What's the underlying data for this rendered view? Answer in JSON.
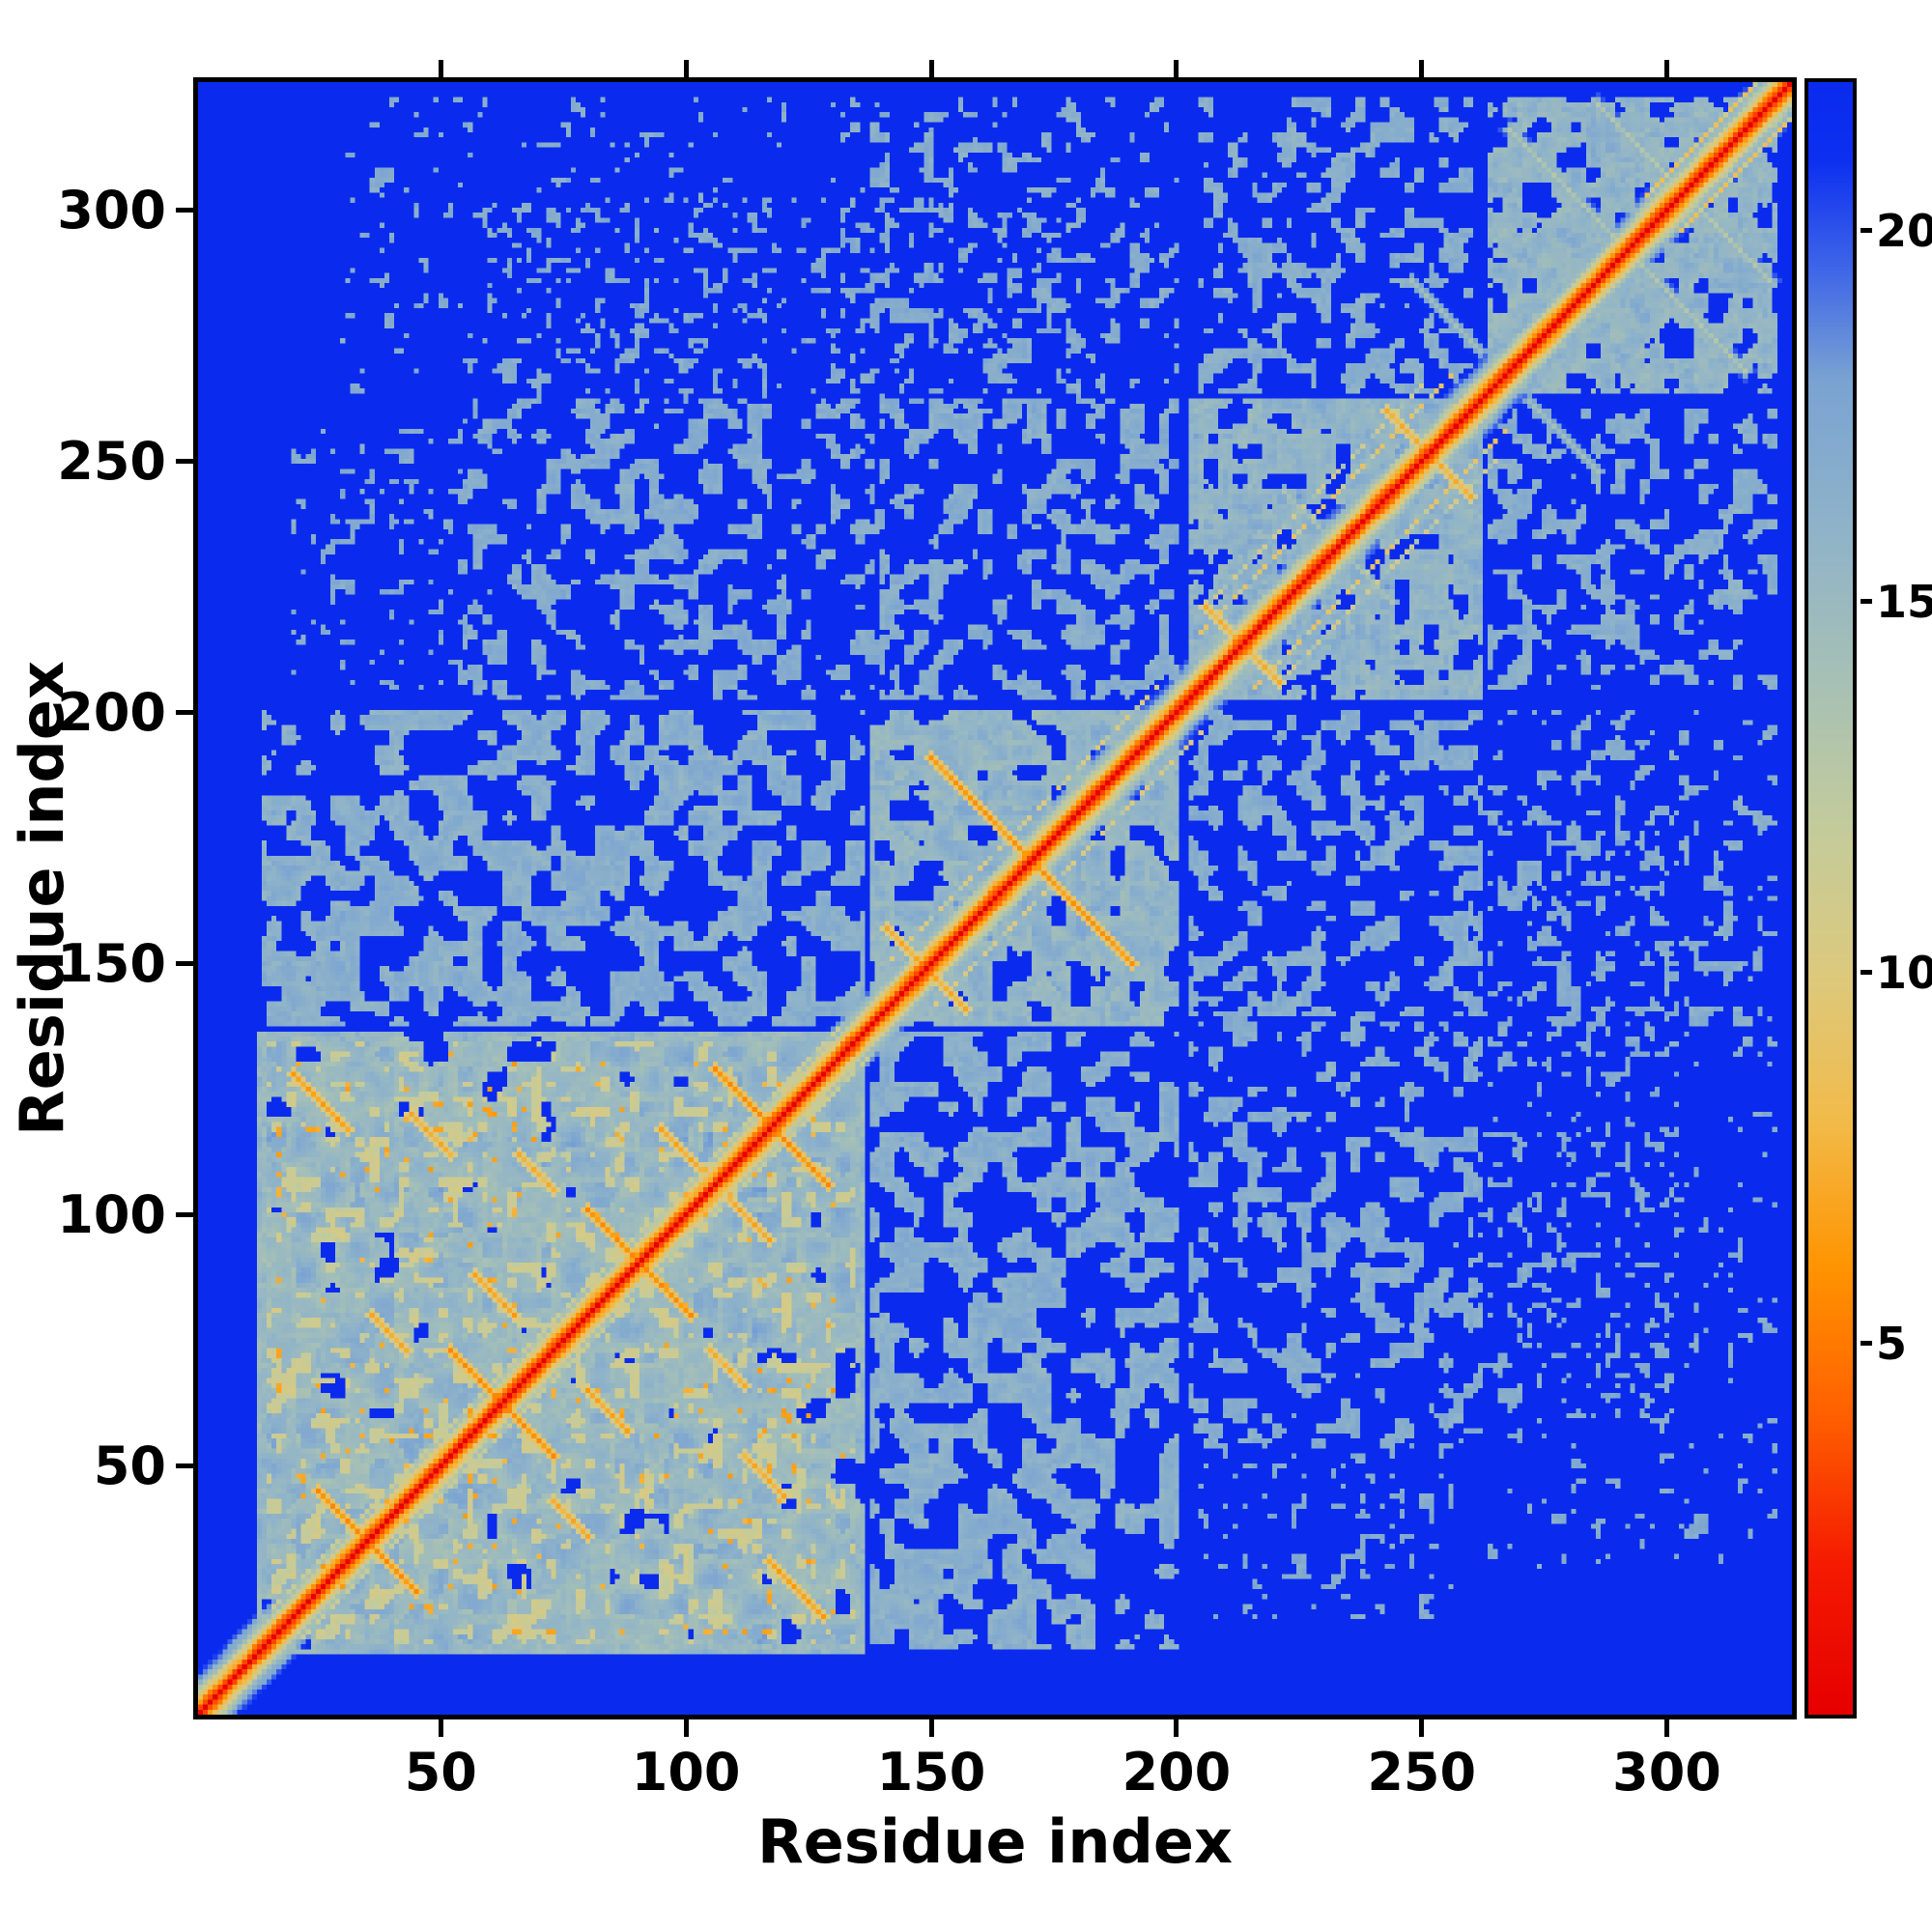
{
  "figure": {
    "xlabel": "Residue index",
    "ylabel": "Residue index",
    "x_ticks": [
      50,
      100,
      150,
      200,
      250,
      300
    ],
    "y_ticks": [
      50,
      100,
      150,
      200,
      250,
      300
    ],
    "colorbar_ticks": [
      5,
      10,
      15,
      20
    ],
    "background_color": "#ffffff",
    "frame_color": "#000000"
  },
  "chart_data": {
    "type": "heatmap",
    "title": "",
    "xlabel": "Residue index",
    "ylabel": "Residue index",
    "n_residues": 325,
    "xlim": [
      1,
      325
    ],
    "ylim": [
      1,
      325
    ],
    "value_range": [
      0,
      22
    ],
    "colorbar_ticks": [
      5,
      10,
      15,
      20
    ],
    "legend": "distance colorbar, low=red high=blue, background capped at max (blue)",
    "colormap_stops": [
      [
        0,
        "#e60000"
      ],
      [
        2,
        "#f51a00"
      ],
      [
        4,
        "#ff5f00"
      ],
      [
        6,
        "#ff9400"
      ],
      [
        8,
        "#f2bb4a"
      ],
      [
        10,
        "#dcc97e"
      ],
      [
        12,
        "#c3cb9c"
      ],
      [
        14,
        "#a6c0b6"
      ],
      [
        16,
        "#8fb3c9"
      ],
      [
        18,
        "#7aa3d2"
      ],
      [
        19.5,
        "#3f66e8"
      ],
      [
        21,
        "#0c2ff0"
      ],
      [
        22,
        "#0a2bee"
      ]
    ],
    "diagonal": {
      "half_width": 9,
      "slope": 3.3,
      "power": 0.88,
      "jitter": 2.5
    },
    "noise_seed": 7,
    "blocks": [
      {
        "name": "n-domain-core",
        "x": [
          13,
          136
        ],
        "y": [
          13,
          136
        ],
        "cut": 0.34,
        "level": 15.2,
        "spread": 5.0,
        "scale": 5.5
      },
      {
        "name": "n-domain-tan-blobs",
        "x": [
          15,
          134
        ],
        "y": [
          15,
          134
        ],
        "cut": 0.8,
        "level": 10.8,
        "spread": 1.5,
        "scale": 2.8
      },
      {
        "name": "n-domain-orange-specks",
        "x": [
          16,
          132
        ],
        "y": [
          16,
          132
        ],
        "cut": 0.935,
        "level": 6.4,
        "spread": 1.5,
        "scale": 1.3
      },
      {
        "name": "inter-n-mid",
        "x": [
          138,
          200
        ],
        "y": [
          14,
          136
        ],
        "cut": 0.52,
        "level": 15.8,
        "spread": 3.0,
        "scale": 3.2
      },
      {
        "name": "mid-domain",
        "x": [
          138,
          200
        ],
        "y": [
          138,
          200
        ],
        "cut": 0.42,
        "level": 15.3,
        "spread": 4.0,
        "scale": 4.0
      },
      {
        "name": "inter-n-c-sparse",
        "x": [
          203,
          262
        ],
        "y": [
          55,
          140
        ],
        "cut": 0.63,
        "level": 16.0,
        "spread": 2.5,
        "scale": 2.6
      },
      {
        "name": "inter-mid-c",
        "x": [
          203,
          262
        ],
        "y": [
          140,
          200
        ],
        "cut": 0.6,
        "level": 16.0,
        "spread": 2.5,
        "scale": 2.6
      },
      {
        "name": "c-helical-domain",
        "x": [
          203,
          262
        ],
        "y": [
          203,
          262
        ],
        "cut": 0.45,
        "level": 15.4,
        "spread": 4.0,
        "scale": 3.0
      },
      {
        "name": "far-right-vs-mid",
        "x": [
          264,
          322
        ],
        "y": [
          130,
          200
        ],
        "cut": 0.73,
        "level": 16.0,
        "spread": 2.0,
        "scale": 2.2
      },
      {
        "name": "far-right-vs-c",
        "x": [
          264,
          322
        ],
        "y": [
          205,
          260
        ],
        "cut": 0.64,
        "level": 16.0,
        "spread": 2.0,
        "scale": 2.4
      },
      {
        "name": "c-term-domain",
        "x": [
          264,
          322
        ],
        "y": [
          264,
          322
        ],
        "cut": 0.46,
        "level": 15.2,
        "spread": 4.0,
        "scale": 3.2
      },
      {
        "name": "sparse-n-vs-top",
        "x": [
          60,
          180
        ],
        "y": [
          262,
          302
        ],
        "cut": 0.76,
        "level": 16.2,
        "spread": 2.0,
        "scale": 2.0
      },
      {
        "name": "sparse-corner",
        "x": [
          20,
          55
        ],
        "y": [
          205,
          258
        ],
        "cut": 0.8,
        "level": 16.2,
        "spread": 2.0,
        "scale": 2.0
      },
      {
        "name": "very-sparse-right",
        "x": [
          264,
          322
        ],
        "y": [
          30,
          120
        ],
        "cut": 0.83,
        "level": 16.3,
        "spread": 1.5,
        "scale": 1.8
      }
    ],
    "streaks": [
      {
        "x": 25,
        "y": 45,
        "len": 14,
        "v": 5.5
      },
      {
        "x": 52,
        "y": 73,
        "len": 15,
        "v": 5.5
      },
      {
        "x": 57,
        "y": 88,
        "len": 9,
        "v": 6.5
      },
      {
        "x": 80,
        "y": 101,
        "len": 15,
        "v": 5.5
      },
      {
        "x": 95,
        "y": 117,
        "len": 9,
        "v": 6.6
      },
      {
        "x": 106,
        "y": 129,
        "len": 17,
        "v": 5.5
      },
      {
        "x": 36,
        "y": 80,
        "len": 8,
        "v": 6.8
      },
      {
        "x": 20,
        "y": 128,
        "len": 12,
        "v": 6.2
      },
      {
        "x": 44,
        "y": 120,
        "len": 9,
        "v": 6.8
      },
      {
        "x": 66,
        "y": 112,
        "len": 8,
        "v": 7.0
      },
      {
        "x": 150,
        "y": 191,
        "len": 41,
        "v": 5.8,
        "dash": true
      },
      {
        "x": 141,
        "y": 157,
        "len": 9,
        "v": 6.8
      },
      {
        "x": 206,
        "y": 221,
        "len": 9,
        "v": 7.0
      },
      {
        "x": 243,
        "y": 260,
        "len": 11,
        "v": 7.0
      },
      {
        "x": 222,
        "y": 244,
        "len": 12,
        "v": 13.5
      },
      {
        "x": 268,
        "y": 316,
        "len": 26,
        "v": 13.0,
        "w": 2
      },
      {
        "x": 286,
        "y": 321,
        "len": 30,
        "v": 13.0,
        "w": 2
      },
      {
        "x": 248,
        "y": 286,
        "len": 15,
        "v": 14.0,
        "w": 2
      }
    ],
    "bands": [
      {
        "from": 16,
        "to": 132,
        "off": 6,
        "v": 11.5
      },
      {
        "from": 142,
        "to": 196,
        "off": 9,
        "v": 10.0,
        "dash": true
      },
      {
        "from": 205,
        "to": 256,
        "off": 11,
        "v": 9.0,
        "dash": true
      },
      {
        "from": 208,
        "to": 250,
        "off": 15,
        "v": 11.0,
        "dash": true
      },
      {
        "from": 296,
        "to": 320,
        "off": 7,
        "v": 8.5
      }
    ]
  }
}
